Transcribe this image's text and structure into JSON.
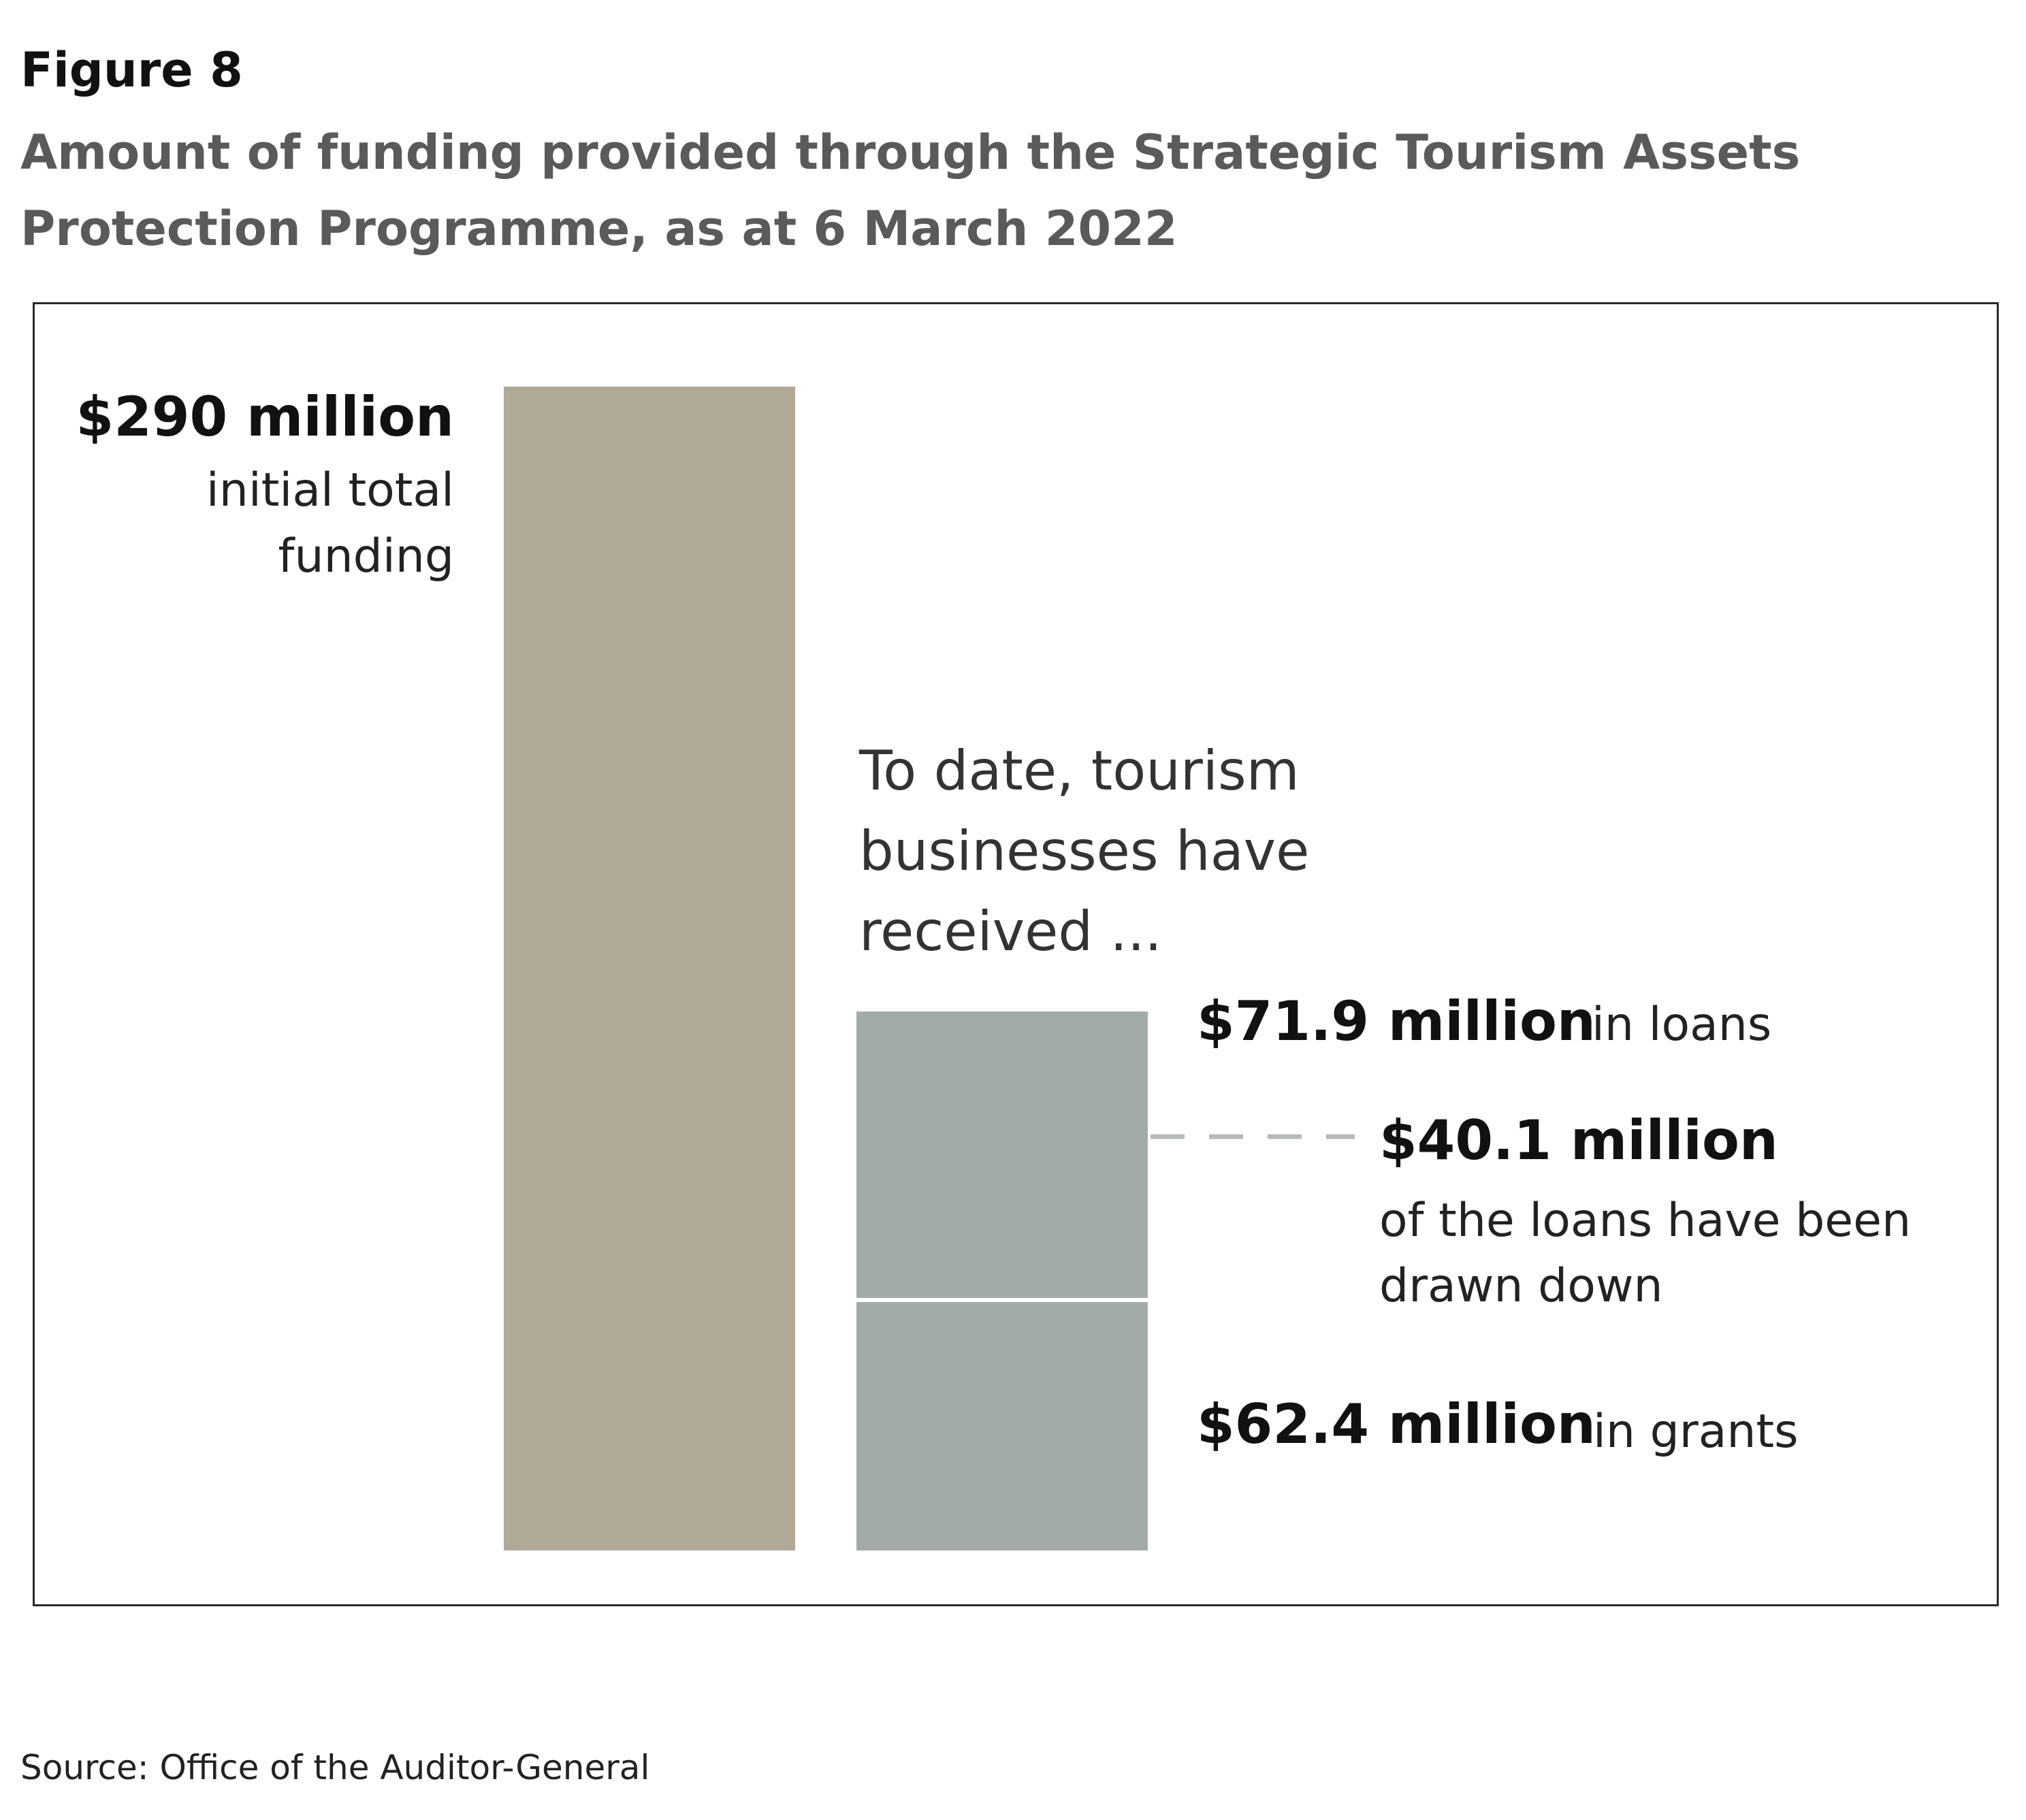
{
  "figure": {
    "label": "Figure 8",
    "title": "Amount of funding provided through the Strategic Tourism Assets Protection Programme, as at 6 March 2022"
  },
  "source": "Source: Office of the Auditor-General",
  "colors": {
    "initial": "#b0a998",
    "received": "#a3aba8",
    "dash": "#b5b9b7",
    "divider": "#ffffff"
  },
  "chart_data": {
    "type": "bar",
    "units": "$ million",
    "categories": [
      "initial total funding",
      "received"
    ],
    "series": [
      {
        "values": [
          290,
          0
        ]
      },
      {
        "values": [
          0,
          62.4
        ]
      },
      {
        "values": [
          0,
          71.9
        ]
      }
    ],
    "annotations": {
      "initial_value": "$290 million",
      "initial_desc_1": "initial total",
      "initial_desc_2": "funding",
      "heading_1": "To date, tourism",
      "heading_2": "businesses have",
      "heading_3": "received ...",
      "loans_value": "$71.9 million",
      "loans_desc": "in loans",
      "drawn_value": "$40.1 million",
      "drawn_desc_1": "of the loans have been",
      "drawn_desc_2": "drawn down",
      "grants_value": "$62.4 million",
      "grants_desc": "in grants"
    },
    "drawn_down": 40.1,
    "ylim": [
      0,
      290
    ]
  }
}
